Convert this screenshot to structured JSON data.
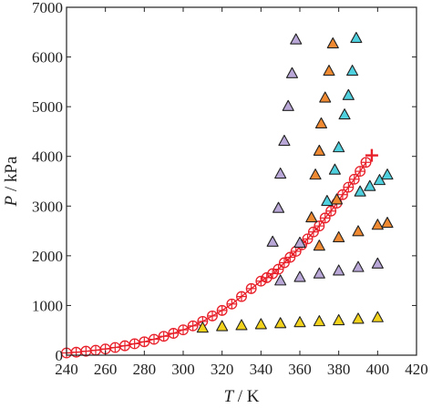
{
  "chart_data": {
    "type": "scatter",
    "title": "",
    "xlabel": {
      "symbol": "T",
      "unit": " / K"
    },
    "ylabel": {
      "symbol": "P",
      "unit": " / kPa"
    },
    "xlim": [
      240,
      420
    ],
    "ylim": [
      0,
      7000
    ],
    "xticks": [
      240,
      260,
      280,
      300,
      320,
      340,
      360,
      380,
      400,
      420
    ],
    "yticks": [
      0,
      1000,
      2000,
      3000,
      4000,
      5000,
      6000,
      7000
    ],
    "grid": false,
    "legend": "none",
    "series": [
      {
        "marker": "circle-plus",
        "color": "#e8202a",
        "line": true,
        "x": [
          240,
          245,
          250,
          255,
          260,
          265,
          270,
          275,
          280,
          285,
          290,
          295,
          300,
          305,
          310,
          315,
          320,
          325,
          330,
          335,
          340,
          343,
          346,
          349,
          352,
          355,
          358,
          361,
          364,
          367,
          370,
          373,
          376,
          379,
          382,
          385,
          388,
          391,
          394
        ],
        "y": [
          45,
          60,
          80,
          100,
          125,
          155,
          190,
          230,
          270,
          320,
          380,
          440,
          510,
          590,
          680,
          790,
          900,
          1030,
          1180,
          1340,
          1490,
          1560,
          1640,
          1730,
          1860,
          1970,
          2090,
          2220,
          2340,
          2480,
          2600,
          2760,
          2900,
          3060,
          3230,
          3380,
          3540,
          3700,
          3880
        ]
      },
      {
        "marker": "plus",
        "color": "#e8202a",
        "line": false,
        "x": [
          397
        ],
        "y": [
          4020
        ]
      },
      {
        "marker": "triangle",
        "color": "#f2d21a",
        "line": false,
        "x": [
          310,
          320,
          330,
          340,
          350,
          360,
          370,
          380,
          390,
          400
        ],
        "y": [
          540,
          570,
          590,
          610,
          630,
          650,
          670,
          690,
          720,
          750
        ]
      },
      {
        "marker": "triangle",
        "color": "#b9a7d8",
        "line": false,
        "x": [
          346,
          349,
          350,
          352,
          354,
          356,
          358,
          360,
          350,
          360,
          370,
          380,
          390,
          400
        ],
        "y": [
          2270,
          2950,
          3640,
          4300,
          5000,
          5660,
          6340,
          2250,
          1490,
          1560,
          1630,
          1690,
          1760,
          1830
        ]
      },
      {
        "marker": "triangle",
        "color": "#f08a32",
        "line": false,
        "x": [
          366,
          368,
          370,
          371,
          373,
          375,
          377,
          379,
          370,
          380,
          390,
          400,
          405
        ],
        "y": [
          2760,
          3620,
          4100,
          4650,
          5170,
          5710,
          6260,
          3120,
          2190,
          2360,
          2480,
          2610,
          2650
        ]
      },
      {
        "marker": "triangle",
        "color": "#4fd0de",
        "line": false,
        "x": [
          374,
          378,
          380,
          383,
          385,
          387,
          389,
          391,
          396,
          401,
          405
        ],
        "y": [
          3090,
          3720,
          4170,
          4830,
          5220,
          5710,
          6370,
          3280,
          3390,
          3510,
          3620
        ]
      }
    ]
  }
}
